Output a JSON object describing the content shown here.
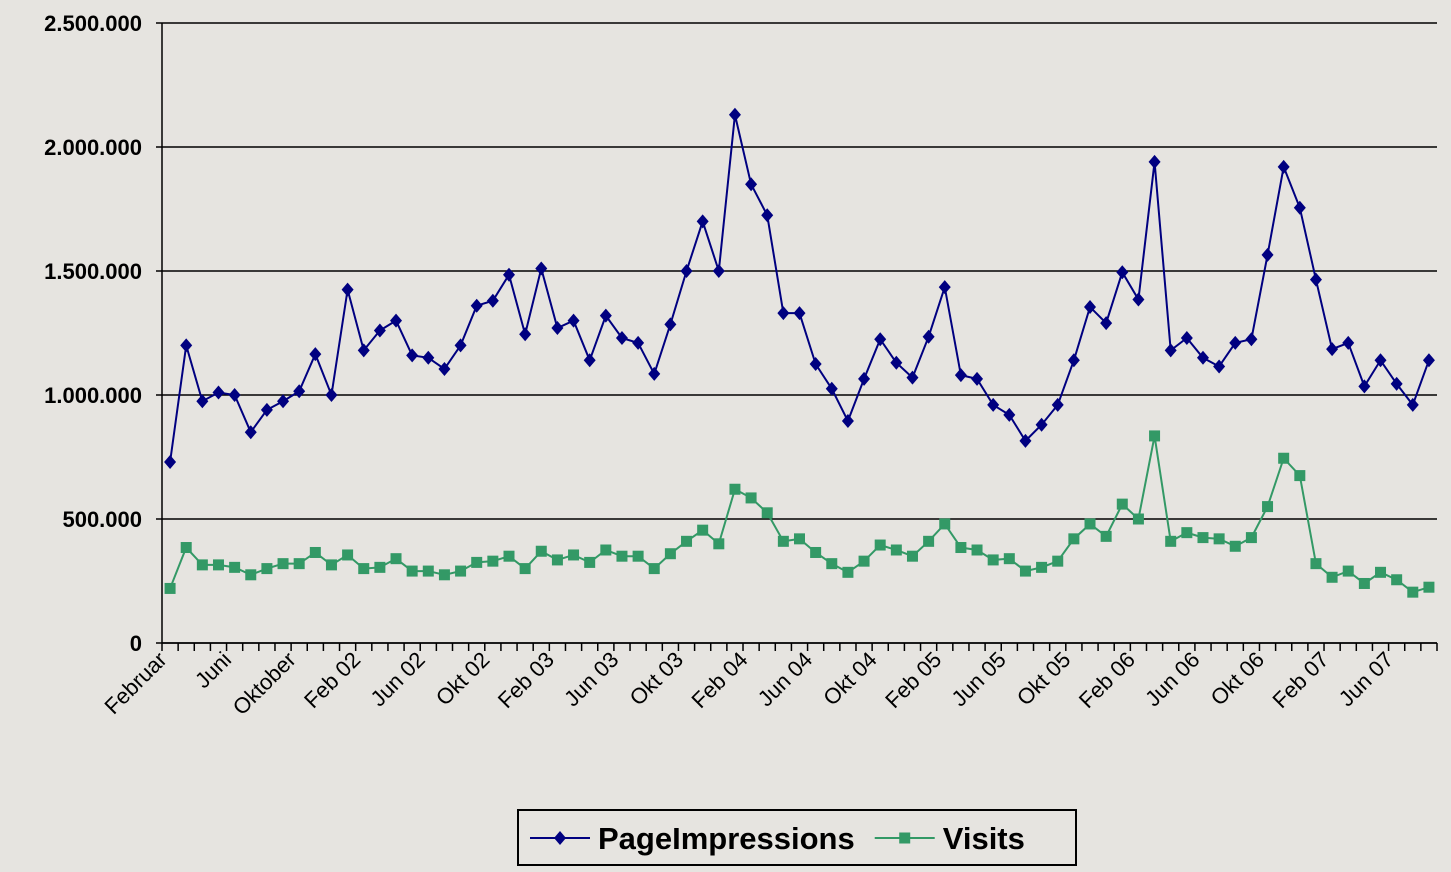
{
  "chart_data": {
    "type": "line",
    "categories": [
      "Februar",
      null,
      null,
      null,
      "Juni",
      null,
      null,
      null,
      "Oktober",
      null,
      null,
      null,
      "Feb 02",
      null,
      null,
      null,
      "Jun 02",
      null,
      null,
      null,
      "Okt 02",
      null,
      null,
      null,
      "Feb 03",
      null,
      null,
      null,
      "Jun 03",
      null,
      null,
      null,
      "Okt 03",
      null,
      null,
      null,
      "Feb 04",
      null,
      null,
      null,
      "Jun 04",
      null,
      null,
      null,
      "Okt 04",
      null,
      null,
      null,
      "Feb 05",
      null,
      null,
      null,
      "Jun 05",
      null,
      null,
      null,
      "Okt 05",
      null,
      null,
      null,
      "Feb 06",
      null,
      null,
      null,
      "Jun 06",
      null,
      null,
      null,
      "Okt 06",
      null,
      null,
      null,
      "Feb 07",
      null,
      null,
      null,
      "Jun 07",
      null,
      null
    ],
    "series": [
      {
        "name": "PageImpressions",
        "color": "#000080",
        "marker": "diamond",
        "values": [
          730000,
          1200000,
          975000,
          1010000,
          1000000,
          850000,
          940000,
          975000,
          1015000,
          1165000,
          1000000,
          1425000,
          1180000,
          1260000,
          1300000,
          1160000,
          1150000,
          1105000,
          1200000,
          1360000,
          1380000,
          1485000,
          1245000,
          1510000,
          1270000,
          1300000,
          1140000,
          1320000,
          1230000,
          1210000,
          1085000,
          1285000,
          1500000,
          1700000,
          1500000,
          2130000,
          1850000,
          1725000,
          1330000,
          1330000,
          1125000,
          1025000,
          895000,
          1065000,
          1225000,
          1130000,
          1070000,
          1235000,
          1435000,
          1080000,
          1065000,
          960000,
          920000,
          815000,
          880000,
          960000,
          1140000,
          1355000,
          1290000,
          1495000,
          1385000,
          1940000,
          1180000,
          1230000,
          1150000,
          1115000,
          1210000,
          1225000,
          1565000,
          1920000,
          1755000,
          1465000,
          1185000,
          1210000,
          1035000,
          1140000,
          1045000,
          960000,
          1140000
        ]
      },
      {
        "name": "Visits",
        "color": "#339966",
        "marker": "square",
        "values": [
          220000,
          385000,
          315000,
          315000,
          305000,
          275000,
          300000,
          320000,
          320000,
          365000,
          315000,
          355000,
          300000,
          305000,
          340000,
          290000,
          290000,
          275000,
          290000,
          325000,
          330000,
          350000,
          300000,
          370000,
          335000,
          355000,
          325000,
          375000,
          350000,
          350000,
          300000,
          360000,
          410000,
          455000,
          400000,
          620000,
          585000,
          525000,
          410000,
          420000,
          365000,
          320000,
          285000,
          330000,
          395000,
          375000,
          350000,
          410000,
          480000,
          385000,
          375000,
          335000,
          340000,
          290000,
          305000,
          330000,
          420000,
          480000,
          430000,
          560000,
          500000,
          835000,
          410000,
          445000,
          425000,
          420000,
          390000,
          425000,
          550000,
          745000,
          675000,
          320000,
          265000,
          290000,
          240000,
          285000,
          255000,
          205000,
          225000
        ]
      }
    ],
    "ylim": [
      0,
      2500000
    ],
    "yticks": [
      0,
      {
        "value": 500000,
        "label": "500.000"
      },
      {
        "value": 1000000,
        "label": "1.000.000"
      },
      {
        "value": 1500000,
        "label": "1.500.000"
      },
      {
        "value": 2000000,
        "label": "2.000.000"
      },
      {
        "value": 2500000,
        "label": "2.500.000"
      }
    ],
    "grid": true,
    "legend": "bottom"
  }
}
